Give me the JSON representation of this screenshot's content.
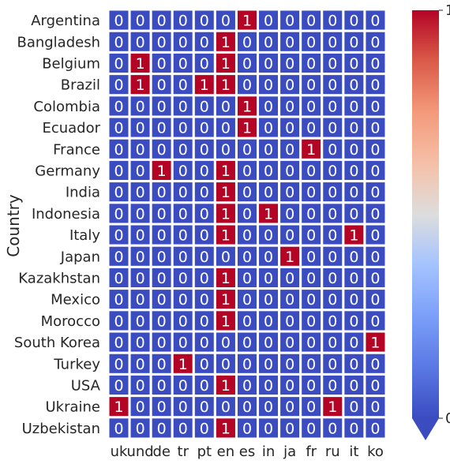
{
  "chart_data": {
    "type": "heatmap",
    "ylabel": "Country",
    "xlabel": "",
    "rows": [
      "Argentina",
      "Bangladesh",
      "Belgium",
      "Brazil",
      "Colombia",
      "Ecuador",
      "France",
      "Germany",
      "India",
      "Indonesia",
      "Italy",
      "Japan",
      "Kazakhstan",
      "Mexico",
      "Morocco",
      "South Korea",
      "Turkey",
      "USA",
      "Ukraine",
      "Uzbekistan"
    ],
    "columns": [
      "uk",
      "und",
      "de",
      "tr",
      "pt",
      "en",
      "es",
      "in",
      "ja",
      "fr",
      "ru",
      "it",
      "ko"
    ],
    "values": [
      [
        0,
        0,
        0,
        0,
        0,
        0,
        1,
        0,
        0,
        0,
        0,
        0,
        0
      ],
      [
        0,
        0,
        0,
        0,
        0,
        1,
        0,
        0,
        0,
        0,
        0,
        0,
        0
      ],
      [
        0,
        1,
        0,
        0,
        0,
        1,
        0,
        0,
        0,
        0,
        0,
        0,
        0
      ],
      [
        0,
        1,
        0,
        0,
        1,
        1,
        0,
        0,
        0,
        0,
        0,
        0,
        0
      ],
      [
        0,
        0,
        0,
        0,
        0,
        0,
        1,
        0,
        0,
        0,
        0,
        0,
        0
      ],
      [
        0,
        0,
        0,
        0,
        0,
        0,
        1,
        0,
        0,
        0,
        0,
        0,
        0
      ],
      [
        0,
        0,
        0,
        0,
        0,
        0,
        0,
        0,
        0,
        1,
        0,
        0,
        0
      ],
      [
        0,
        0,
        1,
        0,
        0,
        1,
        0,
        0,
        0,
        0,
        0,
        0,
        0
      ],
      [
        0,
        0,
        0,
        0,
        0,
        1,
        0,
        0,
        0,
        0,
        0,
        0,
        0
      ],
      [
        0,
        0,
        0,
        0,
        0,
        1,
        0,
        1,
        0,
        0,
        0,
        0,
        0
      ],
      [
        0,
        0,
        0,
        0,
        0,
        1,
        0,
        0,
        0,
        0,
        0,
        1,
        0
      ],
      [
        0,
        0,
        0,
        0,
        0,
        0,
        0,
        0,
        1,
        0,
        0,
        0,
        0
      ],
      [
        0,
        0,
        0,
        0,
        0,
        1,
        0,
        0,
        0,
        0,
        0,
        0,
        0
      ],
      [
        0,
        0,
        0,
        0,
        0,
        1,
        0,
        0,
        0,
        0,
        0,
        0,
        0
      ],
      [
        0,
        0,
        0,
        0,
        0,
        1,
        0,
        0,
        0,
        0,
        0,
        0,
        0
      ],
      [
        0,
        0,
        0,
        0,
        0,
        0,
        0,
        0,
        0,
        0,
        0,
        0,
        1
      ],
      [
        0,
        0,
        0,
        1,
        0,
        0,
        0,
        0,
        0,
        0,
        0,
        0,
        0
      ],
      [
        0,
        0,
        0,
        0,
        0,
        1,
        0,
        0,
        0,
        0,
        0,
        0,
        0
      ],
      [
        1,
        0,
        0,
        0,
        0,
        0,
        0,
        0,
        0,
        0,
        1,
        0,
        0
      ],
      [
        0,
        0,
        0,
        0,
        0,
        1,
        0,
        0,
        0,
        0,
        0,
        0,
        0
      ]
    ],
    "colorbar": {
      "min": 0,
      "max": 1,
      "ticks": [
        "0",
        "1"
      ],
      "colormap": "coolwarm",
      "extend": "min"
    },
    "colors": {
      "low": "#3b4cc0",
      "high": "#b40426",
      "mid": "#dddddd",
      "annotation": "#ffffff"
    },
    "grid": false,
    "legend": "right"
  }
}
